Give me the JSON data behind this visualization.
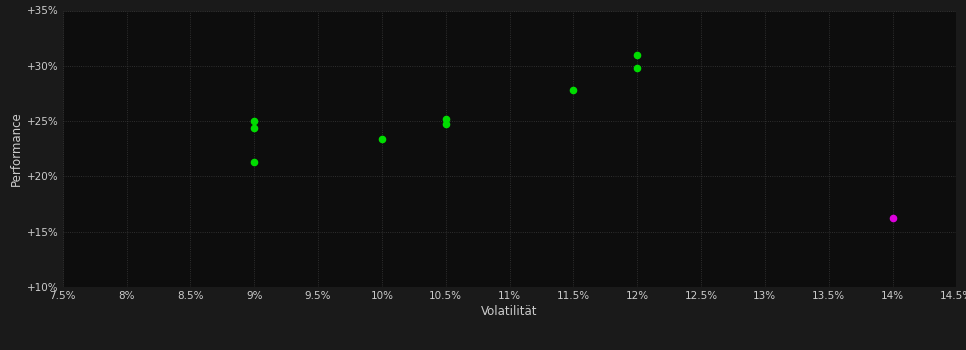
{
  "background_color": "#1a1a1a",
  "plot_bg_color": "#0d0d0d",
  "grid_color": "#3a3a3a",
  "xlabel": "Volatilität",
  "ylabel": "Performance",
  "xlim": [
    0.075,
    0.145
  ],
  "ylim": [
    0.1,
    0.35
  ],
  "xticks": [
    0.075,
    0.08,
    0.085,
    0.09,
    0.095,
    0.1,
    0.105,
    0.11,
    0.115,
    0.12,
    0.125,
    0.13,
    0.135,
    0.14,
    0.145
  ],
  "xtick_labels": [
    "7.5%",
    "8%",
    "8.5%",
    "9%",
    "9.5%",
    "10%",
    "10.5%",
    "11%",
    "11.5%",
    "12%",
    "12.5%",
    "13%",
    "13.5%",
    "14%",
    "14.5%"
  ],
  "yticks": [
    0.1,
    0.15,
    0.2,
    0.25,
    0.3,
    0.35
  ],
  "ytick_labels": [
    "+10%",
    "+15%",
    "+20%",
    "+25%",
    "+30%",
    "+35%"
  ],
  "green_points": [
    [
      0.09,
      0.25
    ],
    [
      0.09,
      0.244
    ],
    [
      0.09,
      0.213
    ],
    [
      0.1,
      0.234
    ],
    [
      0.105,
      0.252
    ],
    [
      0.105,
      0.247
    ],
    [
      0.115,
      0.278
    ],
    [
      0.12,
      0.31
    ],
    [
      0.12,
      0.298
    ]
  ],
  "magenta_points": [
    [
      0.14,
      0.162
    ]
  ],
  "point_size": 20,
  "green_color": "#00dd00",
  "magenta_color": "#dd00dd",
  "text_color": "#cccccc",
  "tick_fontsize": 7.5,
  "label_fontsize": 8.5,
  "grid_linestyle": ":",
  "grid_linewidth": 0.6
}
